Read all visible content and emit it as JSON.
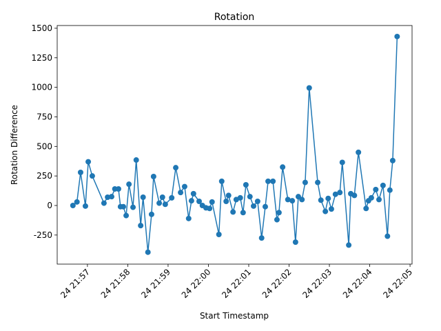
{
  "chart_data": {
    "type": "line",
    "title": "Rotation",
    "x_label": "Start Timestamp",
    "y_label": "Rotation Difference",
    "x": [
      1316.64,
      1316.74,
      1316.83,
      1316.95,
      1317.02,
      1317.12,
      1317.41,
      1317.5,
      1317.6,
      1317.68,
      1317.77,
      1317.82,
      1317.89,
      1317.96,
      1318.03,
      1318.13,
      1318.21,
      1318.32,
      1318.38,
      1318.5,
      1318.59,
      1318.64,
      1318.78,
      1318.86,
      1318.93,
      1319.09,
      1319.19,
      1319.31,
      1319.41,
      1319.51,
      1319.58,
      1319.63,
      1319.77,
      1319.85,
      1319.94,
      1320.03,
      1320.09,
      1320.26,
      1320.33,
      1320.44,
      1320.5,
      1320.61,
      1320.69,
      1320.79,
      1320.86,
      1320.93,
      1321.03,
      1321.12,
      1321.22,
      1321.32,
      1321.41,
      1321.48,
      1321.6,
      1321.7,
      1321.75,
      1321.84,
      1321.97,
      1322.08,
      1322.16,
      1322.23,
      1322.32,
      1322.4,
      1322.5,
      1322.71,
      1322.79,
      1322.9,
      1322.97,
      1323.05,
      1323.15,
      1323.26,
      1323.32,
      1323.48,
      1323.53,
      1323.62,
      1323.72,
      1323.91,
      1323.97,
      1324.04,
      1324.15,
      1324.23,
      1324.33,
      1324.44,
      1324.5,
      1324.57,
      1324.68
    ],
    "series": [
      {
        "color": "#1f77b4",
        "values": [
          0,
          30,
          280,
          -5,
          370,
          250,
          20,
          70,
          75,
          140,
          140,
          -10,
          -10,
          -85,
          180,
          -15,
          385,
          -170,
          70,
          -395,
          -75,
          245,
          20,
          70,
          10,
          65,
          320,
          110,
          160,
          -110,
          40,
          100,
          35,
          0,
          -20,
          -25,
          30,
          -245,
          205,
          35,
          85,
          -55,
          50,
          65,
          -60,
          175,
          75,
          -5,
          35,
          -275,
          -10,
          205,
          205,
          -120,
          -60,
          325,
          50,
          40,
          -310,
          75,
          50,
          195,
          995,
          195,
          45,
          -50,
          60,
          -30,
          95,
          110,
          365,
          -335,
          100,
          85,
          450,
          -25,
          40,
          65,
          135,
          50,
          170,
          -260,
          130,
          380,
          1430
        ]
      }
    ],
    "xlim": [
      1316.25,
      1325.05
    ],
    "ylim": [
      -496,
      1523
    ],
    "xticks": [
      {
        "value": 1317,
        "label": "24 21:57"
      },
      {
        "value": 1318,
        "label": "24 21:58"
      },
      {
        "value": 1319,
        "label": "24 21:59"
      },
      {
        "value": 1320,
        "label": "24 22:00"
      },
      {
        "value": 1321,
        "label": "24 22:01"
      },
      {
        "value": 1322,
        "label": "24 22:02"
      },
      {
        "value": 1323,
        "label": "24 22:03"
      },
      {
        "value": 1324,
        "label": "24 22:04"
      },
      {
        "value": 1325,
        "label": "24 22:05"
      }
    ],
    "yticks": [
      -250,
      0,
      250,
      500,
      750,
      1000,
      1250,
      1500
    ]
  }
}
